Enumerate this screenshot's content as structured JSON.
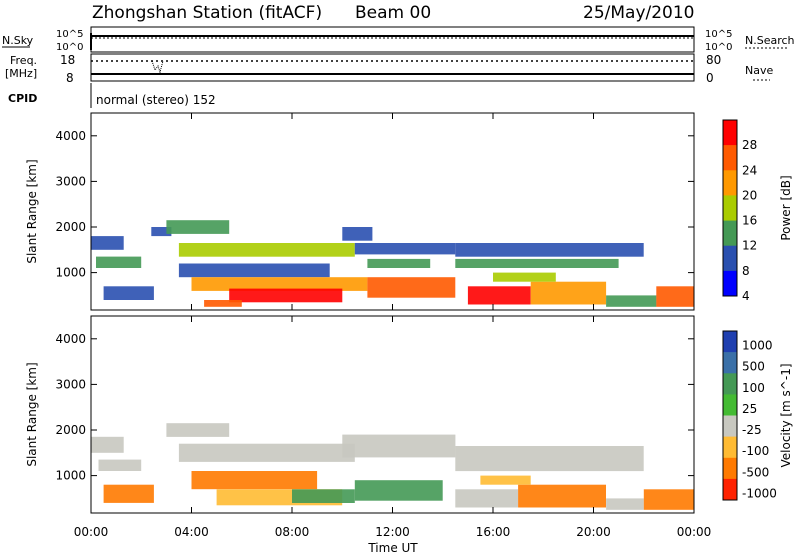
{
  "header": {
    "station_title": "Zhongshan Station (fitACF)",
    "beam": "Beam 00",
    "date": "25/May/2010",
    "cpid_text": "normal (stereo) 152"
  },
  "strips": {
    "nsky_label": "N.Sky",
    "nsky_top": "10^5",
    "nsky_bottom": "10^0",
    "nsearch_label": "N.Search",
    "nsearch_top": "10^5",
    "nsearch_bottom": "10^0",
    "freq_label": "Freq.",
    "freq_unit": "[MHz]",
    "freq_top": "18",
    "freq_bottom": "8",
    "nave_label": "Nave",
    "nave_top": "80",
    "nave_bottom": "0",
    "cpid_label": "CPID"
  },
  "chart_data": [
    {
      "type": "heatmap",
      "panel": "power",
      "ylabel": "Slant Range [km]",
      "ylim": [
        180,
        4500
      ],
      "yticks": [
        "4000",
        "3000",
        "2000",
        "1000"
      ],
      "colorbar": {
        "label": "Power [dB]",
        "ticks": [
          "28",
          "24",
          "20",
          "16",
          "12",
          "8",
          "4"
        ],
        "colors": [
          "#ff0000",
          "#ff5a00",
          "#ff9900",
          "#aacc00",
          "#449955",
          "#2a50b0",
          "#0000ff"
        ]
      },
      "bands": [
        {
          "t0": 0.0,
          "t1": 1.3,
          "r0": 1500,
          "r1": 1800,
          "c": "#2a50b0"
        },
        {
          "t0": 0.2,
          "t1": 2.0,
          "r0": 1100,
          "r1": 1350,
          "c": "#449955"
        },
        {
          "t0": 0.5,
          "t1": 2.5,
          "r0": 400,
          "r1": 700,
          "c": "#2a50b0"
        },
        {
          "t0": 2.4,
          "t1": 3.2,
          "r0": 1800,
          "r1": 2000,
          "c": "#2a50b0"
        },
        {
          "t0": 3.0,
          "t1": 5.5,
          "r0": 1850,
          "r1": 2150,
          "c": "#449955"
        },
        {
          "t0": 3.5,
          "t1": 10.5,
          "r0": 1350,
          "r1": 1650,
          "c": "#aacc00"
        },
        {
          "t0": 3.5,
          "t1": 9.5,
          "r0": 900,
          "r1": 1200,
          "c": "#2a50b0"
        },
        {
          "t0": 4.0,
          "t1": 11.0,
          "r0": 600,
          "r1": 900,
          "c": "#ff9900"
        },
        {
          "t0": 5.5,
          "t1": 10.0,
          "r0": 350,
          "r1": 650,
          "c": "#ff0000"
        },
        {
          "t0": 4.5,
          "t1": 6.0,
          "r0": 250,
          "r1": 400,
          "c": "#ff5a00"
        },
        {
          "t0": 10.0,
          "t1": 11.2,
          "r0": 1700,
          "r1": 2000,
          "c": "#2a50b0"
        },
        {
          "t0": 10.5,
          "t1": 14.5,
          "r0": 1400,
          "r1": 1650,
          "c": "#2a50b0"
        },
        {
          "t0": 11.0,
          "t1": 14.5,
          "r0": 450,
          "r1": 900,
          "c": "#ff5a00"
        },
        {
          "t0": 11.0,
          "t1": 13.5,
          "r0": 1100,
          "r1": 1300,
          "c": "#449955"
        },
        {
          "t0": 14.5,
          "t1": 22.0,
          "r0": 1350,
          "r1": 1650,
          "c": "#2a50b0"
        },
        {
          "t0": 14.5,
          "t1": 21.0,
          "r0": 1100,
          "r1": 1300,
          "c": "#449955"
        },
        {
          "t0": 15.0,
          "t1": 17.5,
          "r0": 300,
          "r1": 700,
          "c": "#ff0000"
        },
        {
          "t0": 17.5,
          "t1": 20.5,
          "r0": 300,
          "r1": 800,
          "c": "#ff9900"
        },
        {
          "t0": 16.0,
          "t1": 18.5,
          "r0": 800,
          "r1": 1000,
          "c": "#aacc00"
        },
        {
          "t0": 20.5,
          "t1": 22.5,
          "r0": 250,
          "r1": 500,
          "c": "#449955"
        },
        {
          "t0": 22.5,
          "t1": 24.0,
          "r0": 250,
          "r1": 700,
          "c": "#ff5a00"
        }
      ]
    },
    {
      "type": "heatmap",
      "panel": "velocity",
      "ylabel": "Slant Range [km]",
      "ylim": [
        180,
        4500
      ],
      "yticks": [
        "4000",
        "3000",
        "2000",
        "1000"
      ],
      "colorbar": {
        "label": "Velocity [m s^-1]",
        "ticks": [
          "1000",
          "500",
          "100",
          "25",
          "-25",
          "-100",
          "-500",
          "-1000"
        ],
        "colors": [
          "#1f3fb0",
          "#3a70a8",
          "#449955",
          "#44bb33",
          "#c8c8c0",
          "#ffbb33",
          "#ff7a00",
          "#ff2200"
        ]
      },
      "bands": [
        {
          "t0": 0.0,
          "t1": 1.3,
          "r0": 1500,
          "r1": 1850,
          "c": "#c8c8c0"
        },
        {
          "t0": 0.3,
          "t1": 2.0,
          "r0": 1100,
          "r1": 1350,
          "c": "#c8c8c0"
        },
        {
          "t0": 0.5,
          "t1": 2.5,
          "r0": 400,
          "r1": 800,
          "c": "#ff7a00"
        },
        {
          "t0": 3.0,
          "t1": 5.5,
          "r0": 1850,
          "r1": 2150,
          "c": "#c8c8c0"
        },
        {
          "t0": 3.5,
          "t1": 10.5,
          "r0": 1300,
          "r1": 1700,
          "c": "#c8c8c0"
        },
        {
          "t0": 4.0,
          "t1": 9.0,
          "r0": 700,
          "r1": 1100,
          "c": "#ff7a00"
        },
        {
          "t0": 5.0,
          "t1": 10.0,
          "r0": 350,
          "r1": 700,
          "c": "#ffbb33"
        },
        {
          "t0": 8.0,
          "t1": 10.5,
          "r0": 400,
          "r1": 700,
          "c": "#449955"
        },
        {
          "t0": 10.0,
          "t1": 14.5,
          "r0": 1400,
          "r1": 1900,
          "c": "#c8c8c0"
        },
        {
          "t0": 10.5,
          "t1": 14.0,
          "r0": 450,
          "r1": 900,
          "c": "#449955"
        },
        {
          "t0": 14.5,
          "t1": 22.0,
          "r0": 1100,
          "r1": 1650,
          "c": "#c8c8c0"
        },
        {
          "t0": 14.5,
          "t1": 17.0,
          "r0": 300,
          "r1": 700,
          "c": "#c8c8c0"
        },
        {
          "t0": 17.0,
          "t1": 20.5,
          "r0": 300,
          "r1": 800,
          "c": "#ff7a00"
        },
        {
          "t0": 15.5,
          "t1": 17.5,
          "r0": 800,
          "r1": 1000,
          "c": "#ffbb33"
        },
        {
          "t0": 20.5,
          "t1": 22.0,
          "r0": 250,
          "r1": 500,
          "c": "#c8c8c0"
        },
        {
          "t0": 22.0,
          "t1": 24.0,
          "r0": 250,
          "r1": 700,
          "c": "#ff7a00"
        }
      ]
    }
  ],
  "xaxis": {
    "xlim": [
      0,
      24
    ],
    "ticks": [
      "00:00",
      "04:00",
      "08:00",
      "12:00",
      "16:00",
      "20:00",
      "00:00"
    ],
    "label": "Time UT"
  }
}
